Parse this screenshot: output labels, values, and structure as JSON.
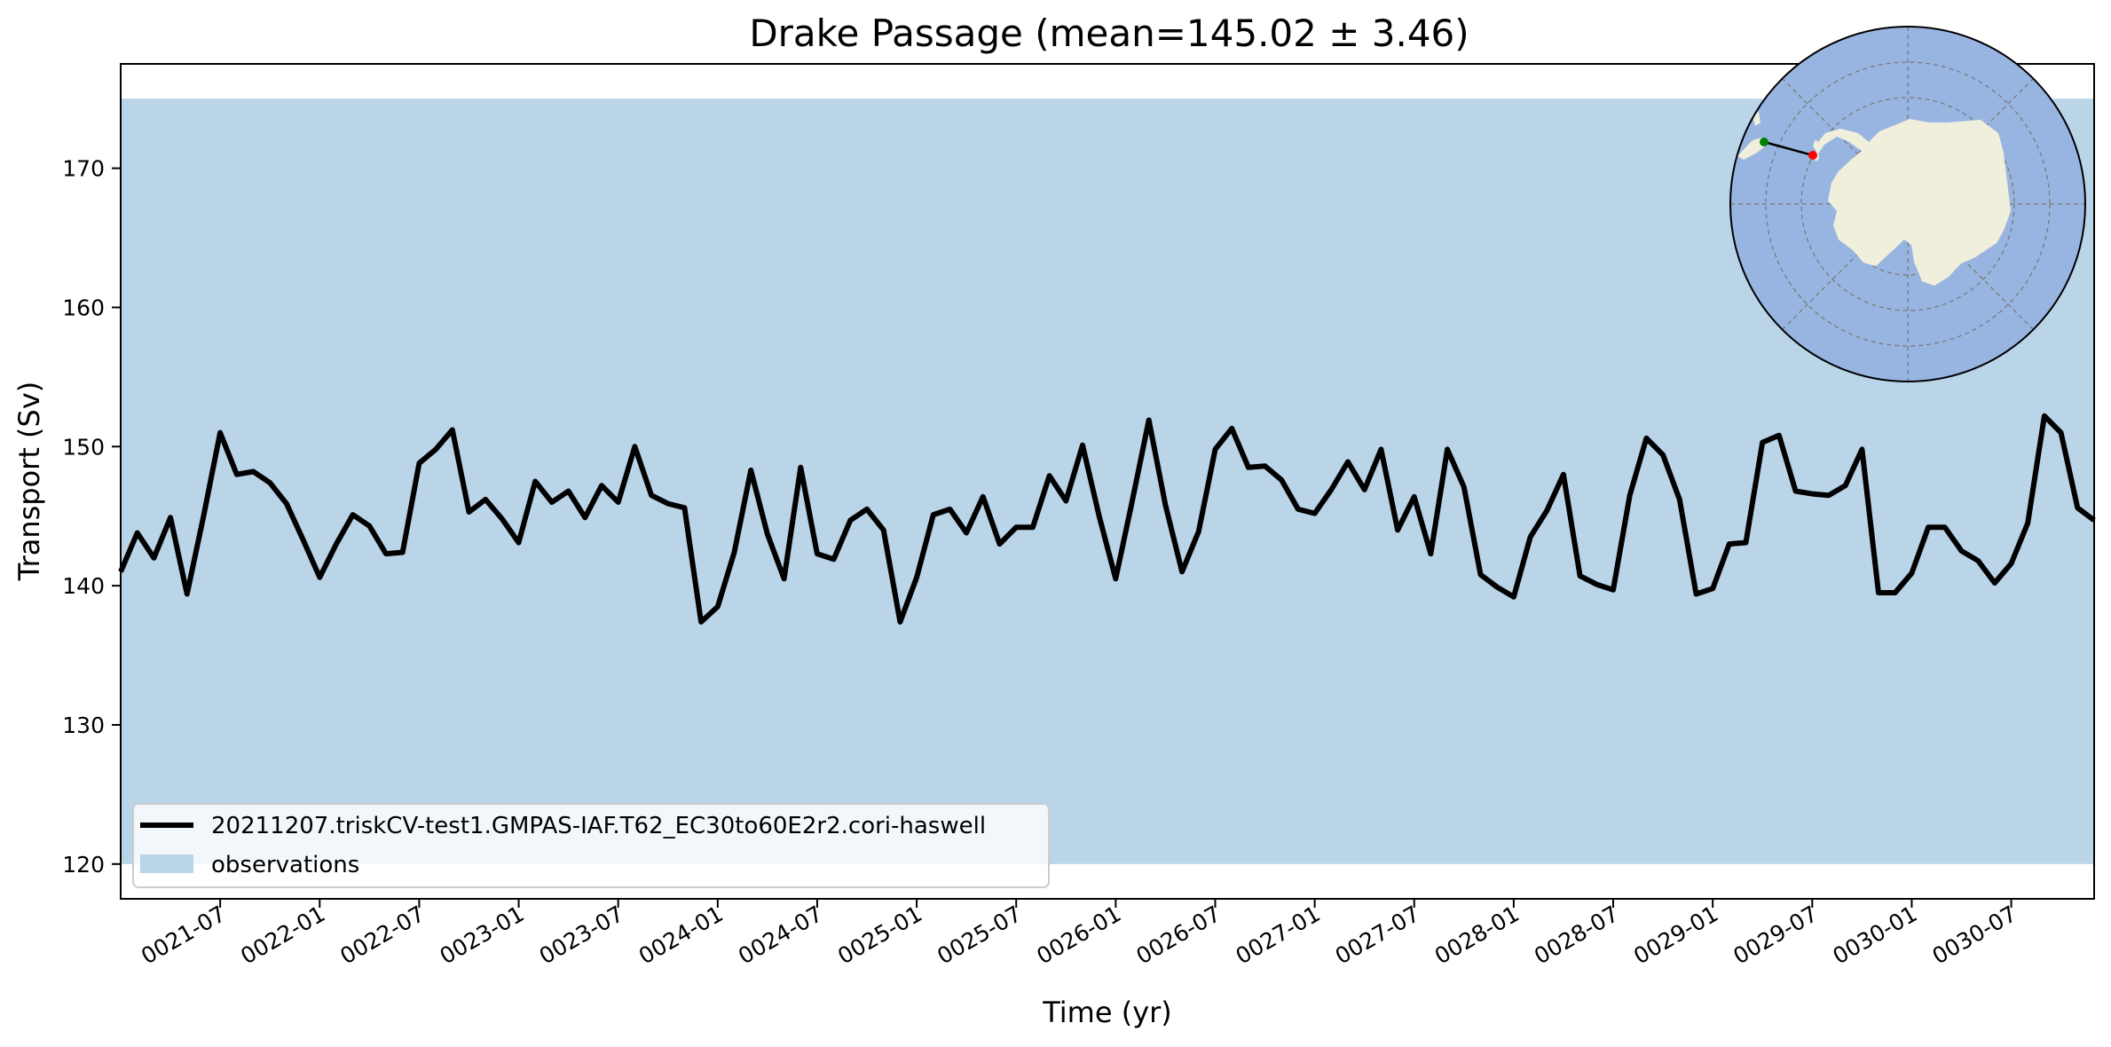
{
  "chart_data": {
    "type": "line",
    "title": "Drake Passage (mean=145.02 ± 3.46)",
    "xlabel": "Time (yr)",
    "ylabel": "Transport (Sv)",
    "ylim": [
      117.5,
      177.5
    ],
    "yticks": [
      120,
      130,
      140,
      150,
      160,
      170
    ],
    "xticks": [
      "0021-07",
      "0022-01",
      "0022-07",
      "0023-01",
      "0023-07",
      "0024-01",
      "0024-07",
      "0025-01",
      "0025-07",
      "0026-01",
      "0026-07",
      "0027-01",
      "0027-07",
      "0028-01",
      "0028-07",
      "0029-01",
      "0029-07",
      "0030-01",
      "0030-07"
    ],
    "observation_band": [
      120,
      175
    ],
    "grid": false,
    "legend_position": "lower-left",
    "series": [
      {
        "name": "20211207.triskCV-test1.GMPAS-IAF.T62_EC30to60E2r2.cori-haswell",
        "color": "#000000",
        "values": [
          141.0,
          143.8,
          142.0,
          144.9,
          139.4,
          145.0,
          151.0,
          148.0,
          148.2,
          147.4,
          145.9,
          143.3,
          140.6,
          143.0,
          145.1,
          144.3,
          142.3,
          142.4,
          148.8,
          149.8,
          151.2,
          145.3,
          146.2,
          144.8,
          143.1,
          147.5,
          146.0,
          146.8,
          144.9,
          147.2,
          146.0,
          150.0,
          146.5,
          145.9,
          145.6,
          137.4,
          138.5,
          142.4,
          148.3,
          143.7,
          140.5,
          148.5,
          142.3,
          141.9,
          144.7,
          145.5,
          144.0,
          137.4,
          140.6,
          145.1,
          145.5,
          143.8,
          146.4,
          143.0,
          144.2,
          144.2,
          147.9,
          146.1,
          150.1,
          145.0,
          140.5,
          146.1,
          151.9,
          145.8,
          141.0,
          143.9,
          149.8,
          151.3,
          148.5,
          148.6,
          147.6,
          145.5,
          145.2,
          146.9,
          148.9,
          146.9,
          149.8,
          144.0,
          146.4,
          142.3,
          149.8,
          147.1,
          140.8,
          139.9,
          139.2,
          143.5,
          145.4,
          148.0,
          140.7,
          140.1,
          139.7,
          146.5,
          150.6,
          149.4,
          146.2,
          139.4,
          139.8,
          143.0,
          143.1,
          150.3,
          150.8,
          146.8,
          146.6,
          146.5,
          147.2,
          149.8,
          139.5,
          139.5,
          140.9,
          144.2,
          144.2,
          142.5,
          141.8,
          140.2,
          141.6,
          144.5,
          152.2,
          151.0,
          145.6,
          144.7
        ]
      },
      {
        "name": "observations",
        "color": "#bad4e8"
      }
    ]
  },
  "inset_map": {
    "description_label": "polar-map",
    "ocean_color": "#98b5e2",
    "land_color": "#efefdc",
    "start_marker_color": "#008000",
    "end_marker_color": "#ff0000"
  }
}
